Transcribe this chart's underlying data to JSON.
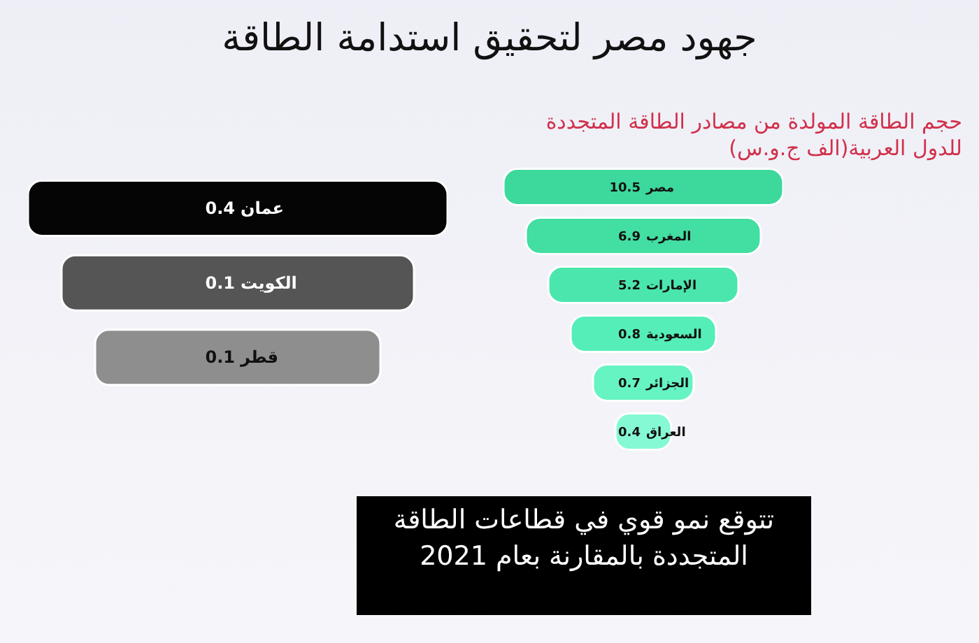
{
  "chart_data": [
    {
      "type": "other",
      "title": "جهود مصر لتحقيق استدامة الطاقة",
      "categories": [
        "عمان",
        "الكويت",
        "قطر"
      ],
      "values": [
        0.4,
        0.1,
        0.1
      ],
      "data_labels": true,
      "colors": [
        "#050505",
        "#555555",
        "#8e8e8e"
      ],
      "annotations": [
        "تتوقع نمو قوي في قطاعات الطاقة المتجددة بالمقارنة بعام 2021"
      ]
    },
    {
      "type": "other",
      "title": "حجم الطاقة المولدة من مصادر الطاقة المتجددة للدول العربية(الف ج.و.س)",
      "categories": [
        "مصر",
        "المغرب",
        "الإمارات",
        "السعودية",
        "الجزائر",
        "العراق"
      ],
      "values": [
        10.5,
        6.9,
        5.2,
        0.8,
        0.7,
        0.4
      ],
      "data_labels": true,
      "colors": [
        "#3dd89c",
        "#42dea2",
        "#4be6ad",
        "#55eeb8",
        "#66f4c3",
        "#85f9d3"
      ]
    }
  ]
}
